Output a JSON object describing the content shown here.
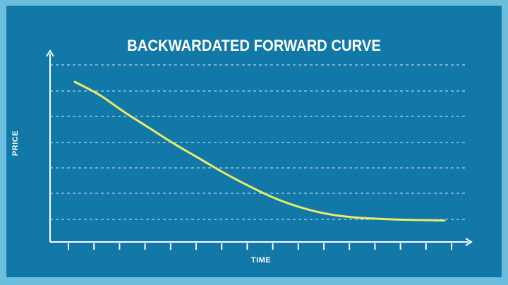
{
  "chart_data": {
    "type": "line",
    "title": "BACKWARDATED FORWARD CURVE",
    "xlabel": "TIME",
    "ylabel": "PRICE",
    "grid": "horizontal-dashed",
    "ylim": [
      0,
      7.5
    ],
    "xlim": [
      0,
      16
    ],
    "series": [
      {
        "values_xy": [
          [
            0,
            6.2
          ],
          [
            1,
            5.7
          ],
          [
            2,
            5.05
          ],
          [
            3,
            4.45
          ],
          [
            4,
            3.85
          ],
          [
            5,
            3.3
          ],
          [
            6,
            2.75
          ],
          [
            7,
            2.25
          ],
          [
            8,
            1.8
          ],
          [
            9,
            1.45
          ],
          [
            10,
            1.2
          ],
          [
            11,
            1.05
          ],
          [
            12,
            0.98
          ],
          [
            13,
            0.94
          ],
          [
            14,
            0.92
          ],
          [
            15,
            0.9
          ]
        ]
      }
    ],
    "gridlines_y": [
      1,
      2,
      3,
      4,
      5,
      6,
      7
    ],
    "xticks_count": 16
  },
  "colors": {
    "background_outer": "#6cbfdc",
    "panel": "#1178a7",
    "line": "#e7ec6b",
    "axis": "#ffffff",
    "grid": "#ffffff"
  }
}
